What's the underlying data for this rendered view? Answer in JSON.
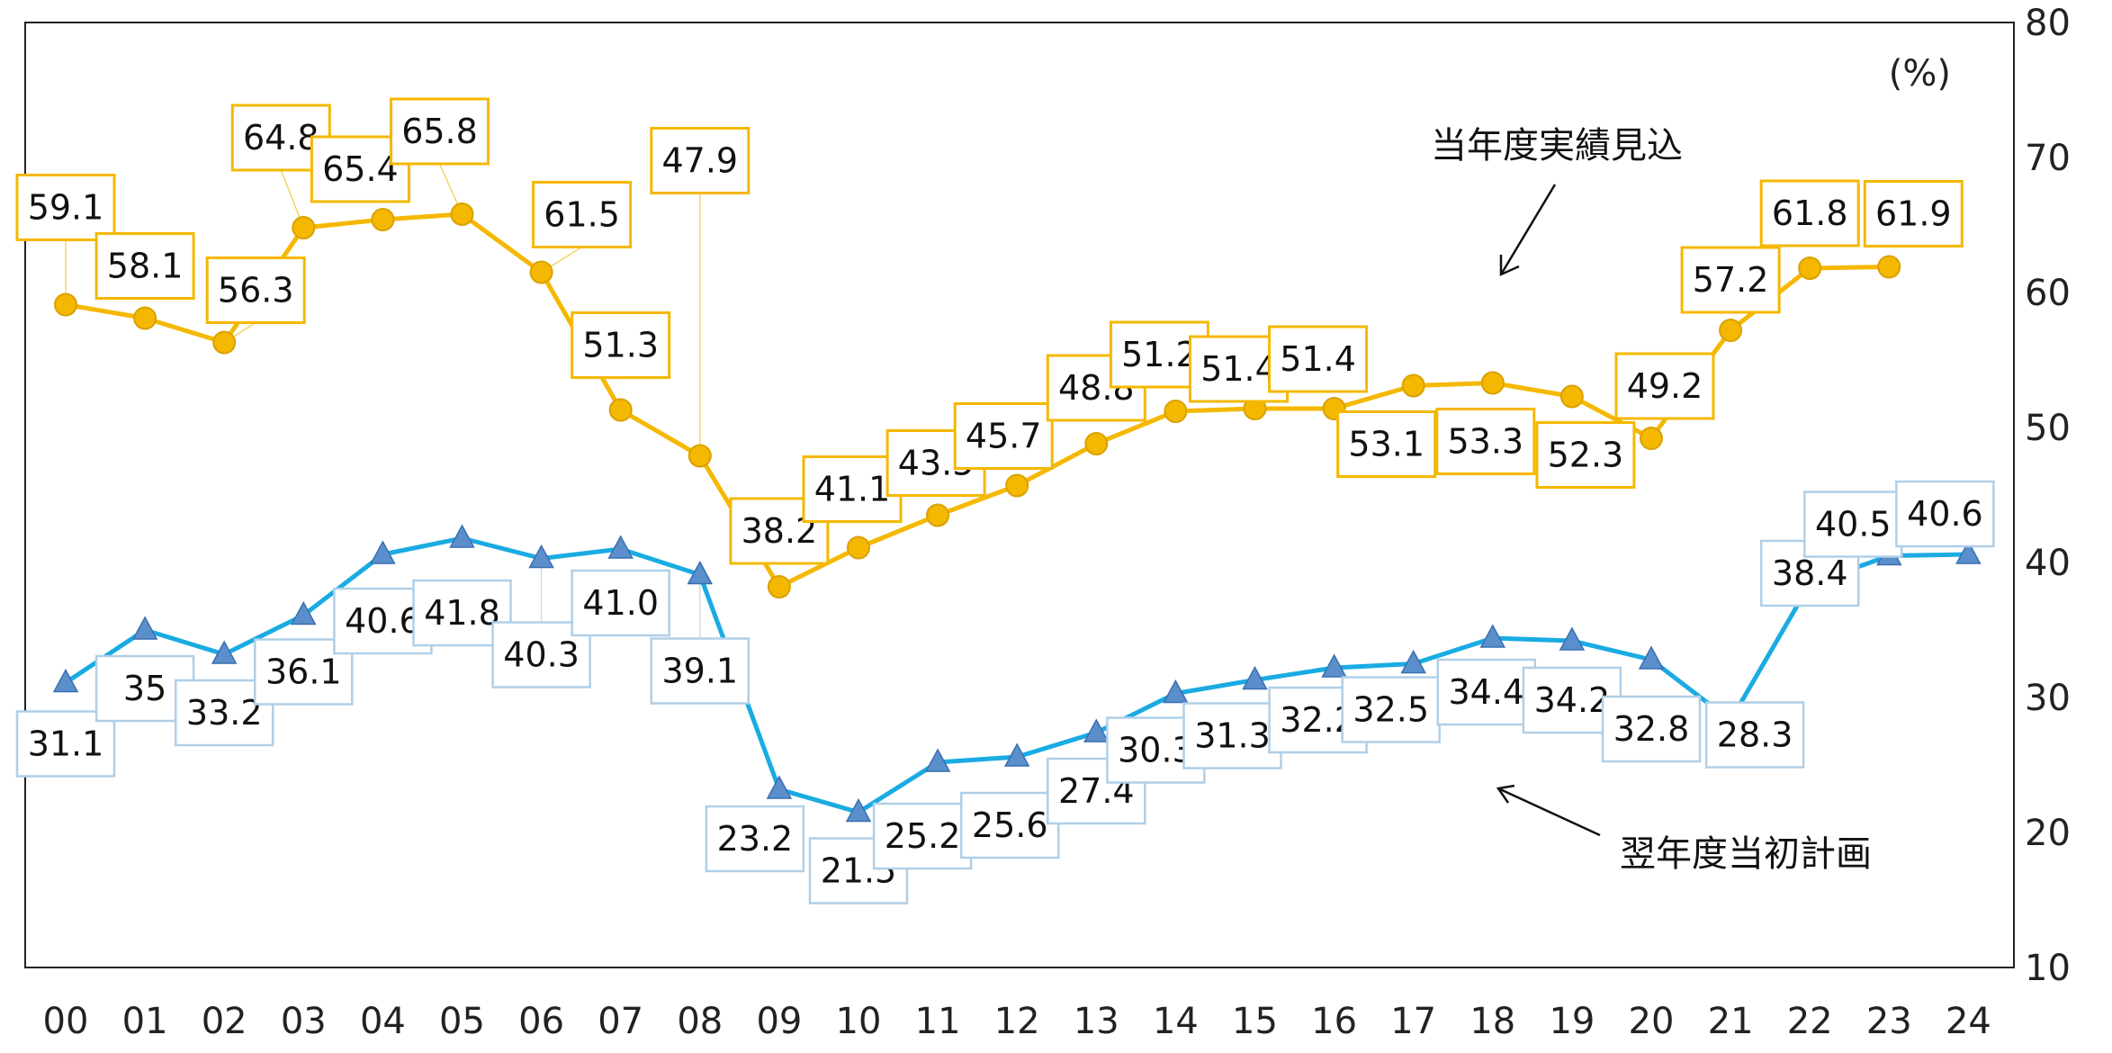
{
  "chart_data": {
    "type": "line",
    "categories": [
      "00",
      "01",
      "02",
      "03",
      "04",
      "05",
      "06",
      "07",
      "08",
      "09",
      "10",
      "11",
      "12",
      "13",
      "14",
      "15",
      "16",
      "17",
      "18",
      "19",
      "20",
      "21",
      "22",
      "23",
      "24"
    ],
    "y_unit": "(%)",
    "ylim": [
      10,
      80
    ],
    "y_ticks": [
      "10",
      "20",
      "30",
      "40",
      "50",
      "60",
      "70",
      "80"
    ],
    "y_axis_side": "right",
    "grid": false,
    "legend": "none",
    "series": [
      {
        "name": "当年度実績見込",
        "color": "#F5B800",
        "marker": "circle",
        "values": [
          59.1,
          58.1,
          56.3,
          64.8,
          65.4,
          65.8,
          61.5,
          51.3,
          47.9,
          38.2,
          41.1,
          43.5,
          45.7,
          48.8,
          51.2,
          51.4,
          51.4,
          53.1,
          53.3,
          52.3,
          49.2,
          57.2,
          61.8,
          61.9,
          null
        ],
        "labels": [
          "59.1",
          "58.1",
          "56.3",
          "64.8",
          "65.4",
          "65.8",
          "61.5",
          "51.3",
          "47.9",
          "38.2",
          "41.1",
          "43.5",
          "45.7",
          "48.8",
          "51.2",
          "51.4",
          "51.4",
          "53.1",
          "53.3",
          "52.3",
          "49.2",
          "57.2",
          "61.8",
          "61.9",
          ""
        ]
      },
      {
        "name": "翌年度当初計画",
        "color": "#1AABE2",
        "marker": "triangle",
        "values": [
          31.1,
          35.0,
          33.2,
          36.1,
          40.6,
          41.8,
          40.3,
          41.0,
          39.1,
          23.2,
          21.5,
          25.2,
          25.6,
          27.4,
          30.3,
          31.3,
          32.2,
          32.5,
          34.4,
          34.2,
          32.8,
          28.3,
          38.4,
          40.5,
          40.6
        ],
        "labels": [
          "31.1",
          "35",
          "33.2",
          "36.1",
          "40.6",
          "41.8",
          "40.3",
          "41.0",
          "39.1",
          "23.2",
          "21.5",
          "25.2",
          "25.6",
          "27.4",
          "30.3",
          "31.3",
          "32.2",
          "32.5",
          "34.4",
          "34.2",
          "32.8",
          "28.3",
          "38.4",
          "40.5",
          "40.6"
        ]
      }
    ],
    "annotations": [
      {
        "text": "当年度実績見込",
        "series": 0
      },
      {
        "text": "翌年度当初計画",
        "series": 1
      }
    ]
  }
}
